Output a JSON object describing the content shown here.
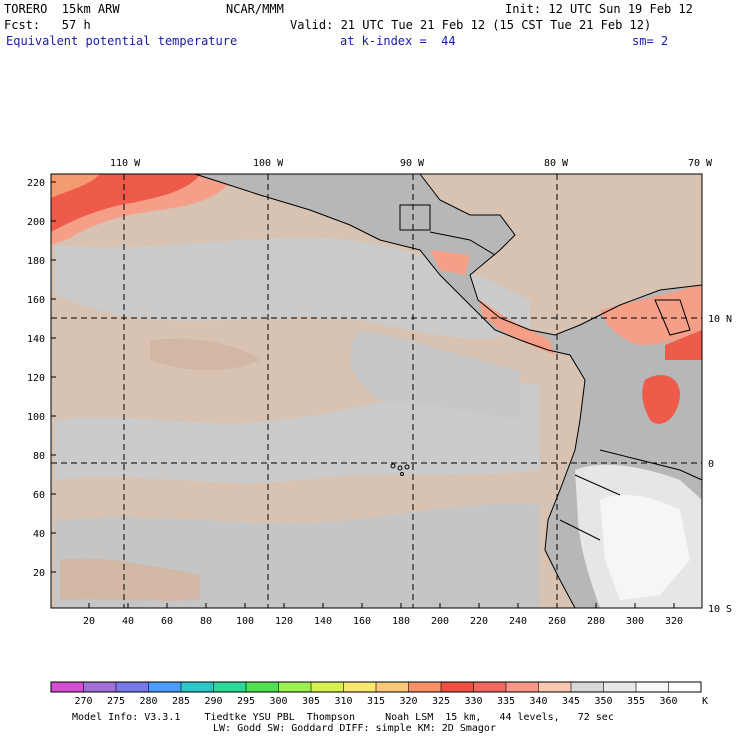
{
  "header": {
    "model": "TORERO  15km ARW",
    "org": "NCAR/MMM",
    "init": "Init: 12 UTC Sun 19 Feb 12",
    "fcst": "Fcst:   57 h",
    "valid": "Valid: 21 UTC Tue 21 Feb 12 (15 CST Tue 21 Feb 12)",
    "field": "Equivalent potential temperature",
    "level": "at k-index =  44",
    "smoothing": "sm= 2"
  },
  "map": {
    "lon_labels": [
      "110 W",
      "100 W",
      "90 W",
      "80 W",
      "70 W"
    ],
    "lat_labels": [
      "10 N",
      "0",
      "10 S"
    ],
    "y_ticks": [
      "220",
      "200",
      "180",
      "160",
      "140",
      "120",
      "100",
      "80",
      "60",
      "40",
      "20"
    ],
    "x_ticks": [
      "20",
      "40",
      "60",
      "80",
      "100",
      "120",
      "140",
      "160",
      "180",
      "200",
      "220",
      "240",
      "260",
      "280",
      "300",
      "320"
    ],
    "land_color": "#b7b7b7"
  },
  "colorbar": {
    "labels": [
      "270",
      "275",
      "280",
      "285",
      "290",
      "295",
      "300",
      "305",
      "310",
      "315",
      "320",
      "325",
      "330",
      "335",
      "340",
      "345",
      "350",
      "355",
      "360"
    ],
    "unit": "K",
    "colors": [
      "#d050d0",
      "#a070d8",
      "#7878e8",
      "#4c9cff",
      "#2cc8c8",
      "#2cd898",
      "#50e050",
      "#9cf050",
      "#d8f050",
      "#f8e870",
      "#f8c878",
      "#f89068",
      "#f05040",
      "#f06860",
      "#f89888",
      "#f8c8b0",
      "#d8d8d8",
      "#e8e8e8",
      "#f8f8f8",
      "#ffffff"
    ]
  },
  "footer": {
    "line1": "Model Info: V3.3.1    Tiedtke YSU PBL  Thompson     Noah LSM  15 km,   44 levels,   72 sec",
    "line2": "LW: Godd SW: Goddard DIFF: simple KM: 2D Smagor"
  }
}
